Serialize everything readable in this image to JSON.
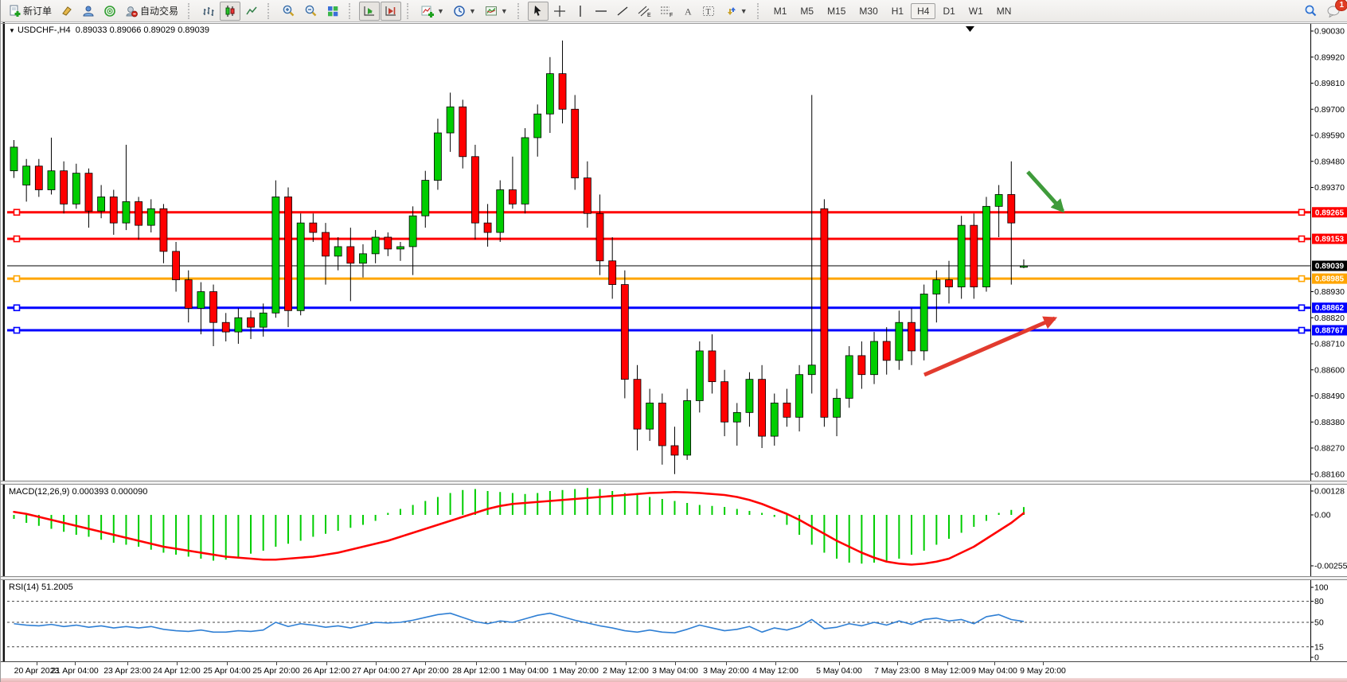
{
  "toolbar": {
    "new_order_label": "新订单",
    "auto_trading_label": "自动交易",
    "notification_count": "1",
    "timeframes": [
      "M1",
      "M5",
      "M15",
      "M30",
      "H1",
      "H4",
      "D1",
      "W1",
      "MN"
    ],
    "active_timeframe": "H4",
    "icon_names": [
      "new-order-icon",
      "styler-icon",
      "profile-icon",
      "signals-icon",
      "auto-trading-icon",
      "bar-chart-icon",
      "candlestick-icon",
      "line-chart-icon",
      "zoom-in-icon",
      "zoom-out-icon",
      "tile-windows-icon",
      "auto-scroll-icon",
      "chart-shift-icon",
      "indicators-icon",
      "periods-icon",
      "templates-icon",
      "cursor-icon",
      "crosshair-icon",
      "vertical-line-icon",
      "horizontal-line-icon",
      "trendline-icon",
      "channel-icon",
      "fibonacci-icon",
      "text-icon",
      "text-label-icon",
      "arrows-icon",
      "search-icon",
      "notifications-icon"
    ]
  },
  "chart": {
    "symbol_title": "USDCHF-,H4",
    "open": "0.89033",
    "high": "0.89066",
    "low": "0.89029",
    "close": "0.89039",
    "axis_ticks": [
      "0.90030",
      "0.89920",
      "0.89810",
      "0.89700",
      "0.89590",
      "0.89480",
      "0.89370",
      "0.88930",
      "0.88820",
      "0.88710",
      "0.88600",
      "0.88490",
      "0.88380",
      "0.88270",
      "0.88160"
    ],
    "hlines": [
      {
        "price": 0.89265,
        "label": "0.89265",
        "color": "#ff0000",
        "label_fg": "#ffffff",
        "thick": true
      },
      {
        "price": 0.89153,
        "label": "0.89153",
        "color": "#ff0000",
        "label_fg": "#ffffff",
        "thick": true
      },
      {
        "price": 0.89039,
        "label": "0.89039",
        "color": "#000000",
        "label_fg": "#ffffff",
        "thick": false
      },
      {
        "price": 0.88985,
        "label": "0.88985",
        "color": "#ffa500",
        "label_fg": "#ffffff",
        "thick": true
      },
      {
        "price": 0.88862,
        "label": "0.88862",
        "color": "#0000ff",
        "label_fg": "#ffffff",
        "thick": true
      },
      {
        "price": 0.88767,
        "label": "0.88767",
        "color": "#0000ff",
        "label_fg": "#ffffff",
        "thick": true
      }
    ],
    "annotations": {
      "green_arrow": {
        "color": "#3f9b3b",
        "from": [
          1290,
          188
        ],
        "to": [
          1334,
          237
        ]
      },
      "red_arrow": {
        "color": "#e23b2e",
        "from": [
          1160,
          443
        ],
        "to": [
          1324,
          372
        ]
      }
    }
  },
  "chart_data": {
    "type": "candlestick",
    "symbol": "USDCHF",
    "period": "H4",
    "x_labels": [
      "20 Apr 2023",
      "21 Apr 04:00",
      "23 Apr 23:00",
      "24 Apr 12:00",
      "25 Apr 04:00",
      "25 Apr 20:00",
      "26 Apr 12:00",
      "27 Apr 04:00",
      "27 Apr 20:00",
      "28 Apr 12:00",
      "1 May 04:00",
      "1 May 20:00",
      "2 May 12:00",
      "3 May 04:00",
      "3 May 20:00",
      "4 May 12:00",
      "5 May 04:00",
      "7 May 23:00",
      "8 May 12:00",
      "9 May 04:00",
      "9 May 20:00"
    ],
    "y_range": [
      0.8816,
      0.9003
    ],
    "candles": [
      [
        0.8944,
        0.8957,
        0.8941,
        0.8954
      ],
      [
        0.8938,
        0.8949,
        0.8931,
        0.8946
      ],
      [
        0.8946,
        0.8949,
        0.8933,
        0.8936
      ],
      [
        0.8936,
        0.8958,
        0.8934,
        0.8944
      ],
      [
        0.8944,
        0.8948,
        0.8926,
        0.893
      ],
      [
        0.893,
        0.8947,
        0.8928,
        0.8943
      ],
      [
        0.8943,
        0.8945,
        0.892,
        0.8927
      ],
      [
        0.8927,
        0.8938,
        0.8924,
        0.8933
      ],
      [
        0.8933,
        0.8936,
        0.8917,
        0.8922
      ],
      [
        0.8922,
        0.8955,
        0.8919,
        0.8931
      ],
      [
        0.8931,
        0.8933,
        0.8915,
        0.8921
      ],
      [
        0.8921,
        0.8932,
        0.8918,
        0.8928
      ],
      [
        0.8928,
        0.893,
        0.8905,
        0.891
      ],
      [
        0.891,
        0.8914,
        0.8893,
        0.8898
      ],
      [
        0.8898,
        0.8902,
        0.888,
        0.8886
      ],
      [
        0.8886,
        0.8897,
        0.8875,
        0.8893
      ],
      [
        0.8893,
        0.8896,
        0.887,
        0.888
      ],
      [
        0.888,
        0.8884,
        0.8872,
        0.8876
      ],
      [
        0.8876,
        0.8886,
        0.8871,
        0.8882
      ],
      [
        0.8882,
        0.8885,
        0.8873,
        0.8878
      ],
      [
        0.8878,
        0.8888,
        0.8874,
        0.8884
      ],
      [
        0.8884,
        0.894,
        0.8882,
        0.8933
      ],
      [
        0.8933,
        0.8937,
        0.8878,
        0.8885
      ],
      [
        0.8885,
        0.8926,
        0.8883,
        0.8922
      ],
      [
        0.8922,
        0.8926,
        0.8914,
        0.8918
      ],
      [
        0.8918,
        0.8922,
        0.8896,
        0.8908
      ],
      [
        0.8908,
        0.8916,
        0.8902,
        0.8912
      ],
      [
        0.8912,
        0.892,
        0.8889,
        0.8905
      ],
      [
        0.8905,
        0.8913,
        0.8899,
        0.8909
      ],
      [
        0.8909,
        0.8919,
        0.8905,
        0.8916
      ],
      [
        0.8916,
        0.8918,
        0.8908,
        0.8911
      ],
      [
        0.8911,
        0.8914,
        0.8906,
        0.8912
      ],
      [
        0.8912,
        0.8929,
        0.89,
        0.8925
      ],
      [
        0.8925,
        0.8944,
        0.892,
        0.894
      ],
      [
        0.894,
        0.8966,
        0.8936,
        0.896
      ],
      [
        0.896,
        0.8977,
        0.8952,
        0.8971
      ],
      [
        0.8971,
        0.8974,
        0.8945,
        0.895
      ],
      [
        0.895,
        0.8955,
        0.8915,
        0.8922
      ],
      [
        0.8922,
        0.893,
        0.8912,
        0.8918
      ],
      [
        0.8918,
        0.894,
        0.8914,
        0.8936
      ],
      [
        0.8936,
        0.895,
        0.8928,
        0.893
      ],
      [
        0.893,
        0.8962,
        0.8926,
        0.8958
      ],
      [
        0.8958,
        0.8972,
        0.895,
        0.8968
      ],
      [
        0.8968,
        0.8992,
        0.896,
        0.8985
      ],
      [
        0.8985,
        0.8999,
        0.8964,
        0.897
      ],
      [
        0.897,
        0.8976,
        0.8936,
        0.8941
      ],
      [
        0.8941,
        0.8948,
        0.892,
        0.8926
      ],
      [
        0.8926,
        0.8934,
        0.89,
        0.8906
      ],
      [
        0.8906,
        0.8916,
        0.889,
        0.8896
      ],
      [
        0.8896,
        0.8902,
        0.8848,
        0.8856
      ],
      [
        0.8856,
        0.8862,
        0.8826,
        0.8835
      ],
      [
        0.8835,
        0.8852,
        0.883,
        0.8846
      ],
      [
        0.8846,
        0.885,
        0.882,
        0.8828
      ],
      [
        0.8828,
        0.8836,
        0.8816,
        0.8824
      ],
      [
        0.8824,
        0.8852,
        0.8822,
        0.8847
      ],
      [
        0.8847,
        0.8872,
        0.8842,
        0.8868
      ],
      [
        0.8868,
        0.8875,
        0.885,
        0.8855
      ],
      [
        0.8855,
        0.886,
        0.8832,
        0.8838
      ],
      [
        0.8838,
        0.8846,
        0.8828,
        0.8842
      ],
      [
        0.8842,
        0.8859,
        0.8836,
        0.8856
      ],
      [
        0.8856,
        0.8862,
        0.8827,
        0.8832
      ],
      [
        0.8832,
        0.885,
        0.8828,
        0.8846
      ],
      [
        0.8846,
        0.8852,
        0.8836,
        0.884
      ],
      [
        0.884,
        0.8862,
        0.8834,
        0.8858
      ],
      [
        0.8858,
        0.8976,
        0.885,
        0.8862
      ],
      [
        0.8928,
        0.8932,
        0.8836,
        0.884
      ],
      [
        0.884,
        0.8852,
        0.8832,
        0.8848
      ],
      [
        0.8848,
        0.887,
        0.8844,
        0.8866
      ],
      [
        0.8866,
        0.8872,
        0.8852,
        0.8858
      ],
      [
        0.8858,
        0.8876,
        0.8854,
        0.8872
      ],
      [
        0.8872,
        0.8878,
        0.8858,
        0.8864
      ],
      [
        0.8864,
        0.8885,
        0.886,
        0.888
      ],
      [
        0.888,
        0.8886,
        0.8862,
        0.8868
      ],
      [
        0.8868,
        0.8896,
        0.8864,
        0.8892
      ],
      [
        0.8892,
        0.8902,
        0.888,
        0.8898
      ],
      [
        0.8898,
        0.8906,
        0.8888,
        0.8895
      ],
      [
        0.8895,
        0.8925,
        0.889,
        0.8921
      ],
      [
        0.8921,
        0.8926,
        0.889,
        0.8895
      ],
      [
        0.8895,
        0.8933,
        0.8893,
        0.8929
      ],
      [
        0.8929,
        0.8938,
        0.8916,
        0.8934
      ],
      [
        0.8934,
        0.8948,
        0.8896,
        0.8922
      ],
      [
        0.89033,
        0.89066,
        0.89029,
        0.89039
      ]
    ],
    "up_color": "#00cd00",
    "down_color": "#ff0000"
  },
  "macd": {
    "name": "MACD(12,26,9)",
    "main_value": "0.000393",
    "signal_value": "0.000090",
    "axis_labels": [
      "0.00128",
      "0.00",
      "-0.002559"
    ],
    "histogram_color": "#00cd00",
    "signal_color": "#ff0000",
    "histogram": [
      -0.0002,
      -0.0004,
      -0.00055,
      -0.0007,
      -0.00085,
      -0.001,
      -0.0011,
      -0.00125,
      -0.0014,
      -0.0015,
      -0.0016,
      -0.00175,
      -0.0019,
      -0.002,
      -0.0021,
      -0.0022,
      -0.0023,
      -0.00225,
      -0.0021,
      -0.00195,
      -0.0018,
      -0.0016,
      -0.00145,
      -0.0013,
      -0.0011,
      -0.00095,
      -0.0008,
      -0.00065,
      -0.0005,
      -0.0003,
      0.0001,
      0.0003,
      0.0005,
      0.0007,
      0.0009,
      0.0011,
      0.00125,
      0.0013,
      0.0012,
      0.00115,
      0.0011,
      0.00105,
      0.0011,
      0.0012,
      0.00125,
      0.0013,
      0.00135,
      0.0013,
      0.0012,
      0.0011,
      0.001,
      0.0009,
      0.0008,
      0.0007,
      0.0006,
      0.0005,
      0.00045,
      0.0004,
      0.0003,
      0.0002,
      0.0001,
      -0.0001,
      -0.0005,
      -0.001,
      -0.0015,
      -0.0019,
      -0.0022,
      -0.0024,
      -0.00245,
      -0.0024,
      -0.0023,
      -0.0022,
      -0.002,
      -0.0018,
      -0.0015,
      -0.0012,
      -0.0009,
      -0.0006,
      -0.0003,
      0.0001,
      0.00025,
      0.000393
    ],
    "signal": [
      0.00015,
      5e-05,
      -0.0001,
      -0.00025,
      -0.0004,
      -0.00055,
      -0.0007,
      -0.00085,
      -0.001,
      -0.00115,
      -0.0013,
      -0.00145,
      -0.0016,
      -0.0017,
      -0.0018,
      -0.0019,
      -0.002,
      -0.0021,
      -0.00215,
      -0.0022,
      -0.00225,
      -0.00225,
      -0.0022,
      -0.00215,
      -0.0021,
      -0.002,
      -0.0019,
      -0.00175,
      -0.0016,
      -0.00145,
      -0.0013,
      -0.0011,
      -0.0009,
      -0.0007,
      -0.0005,
      -0.0003,
      -0.0001,
      0.0001,
      0.0003,
      0.00045,
      0.00055,
      0.0006,
      0.00065,
      0.0007,
      0.00075,
      0.0008,
      0.00085,
      0.0009,
      0.00095,
      0.001,
      0.00105,
      0.0011,
      0.00112,
      0.00115,
      0.00113,
      0.0011,
      0.00105,
      0.001,
      0.0009,
      0.00075,
      0.00055,
      0.0003,
      5e-05,
      -0.00025,
      -0.0006,
      -0.00095,
      -0.0013,
      -0.0016,
      -0.0019,
      -0.00215,
      -0.00235,
      -0.00245,
      -0.0025,
      -0.00245,
      -0.00235,
      -0.0022,
      -0.0019,
      -0.0016,
      -0.0012,
      -0.0008,
      -0.0004,
      9e-05
    ]
  },
  "rsi": {
    "name": "RSI(14)",
    "value": "51.2005",
    "line_color": "#2f7fd4",
    "axis_labels": [
      "100",
      "80",
      "50",
      "15",
      "0"
    ],
    "dashed_levels": [
      80,
      50,
      15
    ],
    "values": [
      48,
      46,
      45,
      47,
      44,
      46,
      43,
      45,
      42,
      44,
      42,
      44,
      40,
      38,
      37,
      39,
      36,
      36,
      38,
      37,
      39,
      50,
      44,
      48,
      46,
      43,
      45,
      42,
      46,
      50,
      49,
      50,
      53,
      57,
      61,
      63,
      57,
      51,
      48,
      52,
      50,
      55,
      60,
      63,
      58,
      53,
      49,
      45,
      42,
      38,
      36,
      39,
      36,
      35,
      40,
      46,
      42,
      38,
      40,
      44,
      36,
      42,
      39,
      44,
      54,
      41,
      43,
      48,
      45,
      50,
      46,
      52,
      47,
      54,
      56,
      52,
      54,
      48,
      58,
      61,
      54,
      51.2005
    ]
  }
}
